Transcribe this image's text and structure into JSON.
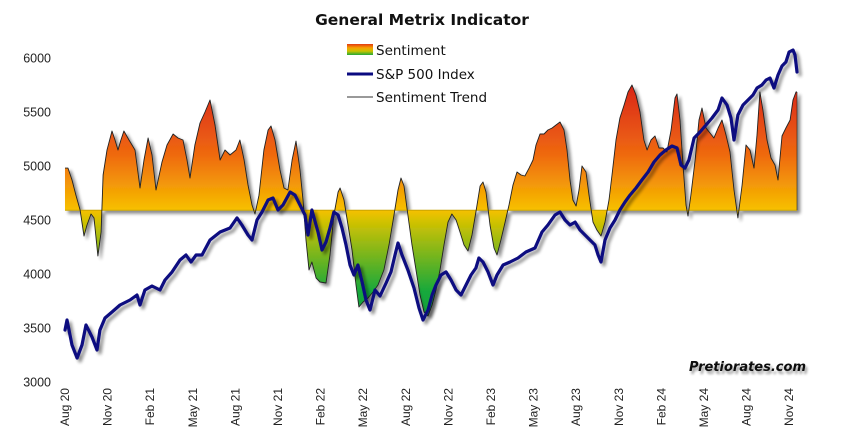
{
  "chart_data": {
    "type": "area",
    "title": "General Metrix Indicator",
    "xlabel": "",
    "ylabel": "",
    "ylim": [
      3000,
      6000
    ],
    "yticks": [
      "6000",
      "5500",
      "5000",
      "4500",
      "4000",
      "3500",
      "3000"
    ],
    "ytick_values": [
      6000,
      5500,
      5000,
      4500,
      4000,
      3500,
      3000
    ],
    "x_unit": "months since Aug 2020",
    "xlim": [
      0,
      52
    ],
    "xticks": [
      "Aug 20",
      "Nov 20",
      "Feb 21",
      "May 21",
      "Aug 21",
      "Nov 21",
      "Feb 22",
      "May 22",
      "Aug 22",
      "Nov 22",
      "Feb 23",
      "May 23",
      "Aug 23",
      "Nov 23",
      "Feb 24",
      "May 24",
      "Aug 24",
      "Nov 24"
    ],
    "xtick_values": [
      0,
      3,
      6,
      9,
      12,
      15,
      18,
      21,
      24,
      27,
      30,
      33,
      36,
      39,
      42,
      45,
      48,
      51
    ],
    "grid": false,
    "legend_position": "top-center",
    "watermark": "Pretiorates.com",
    "sentiment_baseline": 4590,
    "colors": {
      "sp500": "#0a0a80",
      "sentiment_high": "#d8201a",
      "sentiment_mid": "#ff9a00",
      "sentiment_base": "#f7c000",
      "sentiment_low": "#14a83c",
      "trend": "#222222"
    },
    "series": [
      {
        "name": "Sentiment",
        "kind": "area",
        "x": [
          0.21,
          0.49,
          0.77,
          1.06,
          1.34,
          1.55,
          1.83,
          2.04,
          2.32,
          2.54,
          2.68,
          2.96,
          3.31,
          3.52,
          3.73,
          3.94,
          4.15,
          4.51,
          4.93,
          5.28,
          5.56,
          5.85,
          6.13,
          6.41,
          6.83,
          7.18,
          7.61,
          7.96,
          8.31,
          8.59,
          8.8,
          9.15,
          9.51,
          9.86,
          10.21,
          10.56,
          10.92,
          11.27,
          11.62,
          12.04,
          12.32,
          12.61,
          12.89,
          13.17,
          13.38,
          13.66,
          14.01,
          14.3,
          14.51,
          14.79,
          15.14,
          15.42,
          15.7,
          15.99,
          16.27,
          16.55,
          16.76,
          16.97,
          17.18,
          17.39,
          17.68,
          17.96,
          18.38,
          18.66,
          18.94,
          19.23,
          19.37,
          19.65,
          19.93,
          20.21,
          20.49,
          20.7,
          20.99,
          21.34,
          21.69,
          22.04,
          22.46,
          22.82,
          23.17,
          23.45,
          23.66,
          23.87,
          24.15,
          24.44,
          24.72,
          25.0,
          25.28,
          25.56,
          25.85,
          26.13,
          26.41,
          26.69,
          26.97,
          27.25,
          27.54,
          27.82,
          28.1,
          28.38,
          28.66,
          28.94,
          29.23,
          29.44,
          29.65,
          29.93,
          30.21,
          30.42,
          30.7,
          30.99,
          31.27,
          31.55,
          31.83,
          32.11,
          32.39,
          32.68,
          32.96,
          33.17,
          33.45,
          33.73,
          34.01,
          34.3,
          34.58,
          34.86,
          35.14,
          35.35,
          35.56,
          35.77,
          35.99,
          36.2,
          36.41,
          36.69,
          36.9,
          37.18,
          37.46,
          37.75,
          38.03,
          38.31,
          38.52,
          38.8,
          39.08,
          39.37,
          39.65,
          39.93,
          40.21,
          40.49,
          40.77,
          40.99,
          41.27,
          41.55,
          41.83,
          42.11,
          42.39,
          42.68,
          42.96,
          43.1,
          43.31,
          43.52,
          43.73,
          43.87,
          44.08,
          44.37,
          44.65,
          44.86,
          45.14,
          45.42,
          45.7,
          45.99,
          46.27,
          46.55,
          46.83,
          47.11,
          47.39,
          47.68,
          47.96,
          48.24,
          48.52,
          48.73,
          48.94,
          49.15,
          49.44,
          49.72,
          50.0,
          50.21,
          50.49,
          50.77,
          51.06,
          51.27,
          51.48
        ],
        "values": [
          4981,
          4870,
          4731,
          4593,
          4352,
          4454,
          4556,
          4519,
          4167,
          4389,
          4917,
          5148,
          5324,
          5241,
          5148,
          5241,
          5324,
          5241,
          5148,
          4796,
          5056,
          5259,
          5102,
          4778,
          5037,
          5194,
          5296,
          5259,
          5241,
          5056,
          4889,
          5194,
          5398,
          5500,
          5611,
          5380,
          5056,
          5148,
          5102,
          5148,
          5241,
          5056,
          4824,
          4639,
          4556,
          4731,
          5148,
          5333,
          5370,
          5241,
          4963,
          4796,
          4778,
          5056,
          5231,
          4963,
          4685,
          4315,
          4037,
          4111,
          3963,
          3926,
          3917,
          4176,
          4546,
          4759,
          4796,
          4685,
          4454,
          4222,
          3898,
          3694,
          3741,
          3778,
          3833,
          3898,
          4037,
          4269,
          4546,
          4778,
          4889,
          4815,
          4546,
          4269,
          4037,
          3806,
          3648,
          3611,
          3713,
          3852,
          4037,
          4269,
          4481,
          4556,
          4500,
          4389,
          4269,
          4213,
          4361,
          4574,
          4815,
          4852,
          4759,
          4454,
          4241,
          4176,
          4315,
          4481,
          4639,
          4824,
          4944,
          4917,
          4907,
          4981,
          5056,
          5194,
          5296,
          5296,
          5333,
          5352,
          5380,
          5407,
          5333,
          5148,
          4870,
          4685,
          4630,
          4778,
          5000,
          4944,
          4731,
          4481,
          4407,
          4352,
          4481,
          4685,
          4917,
          5241,
          5444,
          5565,
          5685,
          5750,
          5657,
          5500,
          5241,
          5148,
          5241,
          5278,
          5167,
          5167,
          5130,
          5333,
          5630,
          5667,
          5426,
          5009,
          4639,
          4537,
          4731,
          5056,
          5426,
          5537,
          5352,
          5306,
          5259,
          5352,
          5426,
          5287,
          5130,
          4778,
          4519,
          4824,
          5194,
          5148,
          4981,
          5287,
          5685,
          5519,
          5241,
          5074,
          5009,
          4870,
          5278,
          5352,
          5426,
          5611,
          5685
        ]
      },
      {
        "name": "S&P 500 Index",
        "kind": "line",
        "x": [
          0,
          0.14,
          0.49,
          0.85,
          1.2,
          1.48,
          1.9,
          2.25,
          2.46,
          2.82,
          3.31,
          3.87,
          4.58,
          5.07,
          5.28,
          5.63,
          6.13,
          6.69,
          7.04,
          7.54,
          8.1,
          8.52,
          8.87,
          9.23,
          9.65,
          10.21,
          10.92,
          11.62,
          12.11,
          12.46,
          12.89,
          13.17,
          13.52,
          13.87,
          14.3,
          14.65,
          15.0,
          15.35,
          15.85,
          16.2,
          16.55,
          16.9,
          17.11,
          17.39,
          17.82,
          18.1,
          18.38,
          18.66,
          18.94,
          19.23,
          19.51,
          19.79,
          20.07,
          20.35,
          20.63,
          20.92,
          21.2,
          21.48,
          21.83,
          22.18,
          22.61,
          22.96,
          23.24,
          23.45,
          23.73,
          24.15,
          24.58,
          24.93,
          25.21,
          25.56,
          25.85,
          26.13,
          26.48,
          26.83,
          27.18,
          27.54,
          27.89,
          28.24,
          28.59,
          28.94,
          29.15,
          29.44,
          29.79,
          30.14,
          30.42,
          30.85,
          31.34,
          31.9,
          32.46,
          33.1,
          33.59,
          34.01,
          34.51,
          34.86,
          35.21,
          35.56,
          35.92,
          36.27,
          36.62,
          36.97,
          37.32,
          37.54,
          37.75,
          38.03,
          38.38,
          38.73,
          39.08,
          39.44,
          39.79,
          40.21,
          40.63,
          41.06,
          41.48,
          41.9,
          42.32,
          42.75,
          43.1,
          43.38,
          43.66,
          43.94,
          44.3,
          44.72,
          45.14,
          45.56,
          45.99,
          46.27,
          46.62,
          46.9,
          47.11,
          47.39,
          47.75,
          48.1,
          48.45,
          48.73,
          49.08,
          49.37,
          49.65,
          49.93,
          50.21,
          50.49,
          50.77,
          50.99,
          51.27,
          51.41,
          51.55
        ],
        "values": [
          3481,
          3574,
          3343,
          3222,
          3343,
          3528,
          3417,
          3296,
          3481,
          3593,
          3648,
          3713,
          3759,
          3806,
          3713,
          3852,
          3889,
          3852,
          3944,
          4019,
          4130,
          4176,
          4111,
          4176,
          4176,
          4315,
          4389,
          4426,
          4519,
          4454,
          4361,
          4315,
          4500,
          4574,
          4685,
          4704,
          4593,
          4639,
          4759,
          4731,
          4639,
          4546,
          4361,
          4593,
          4389,
          4222,
          4296,
          4426,
          4574,
          4546,
          4426,
          4269,
          4083,
          3991,
          4083,
          3926,
          3759,
          3667,
          3852,
          3796,
          3917,
          4019,
          4176,
          4287,
          4176,
          4037,
          3870,
          3685,
          3574,
          3667,
          3806,
          3898,
          3991,
          4019,
          3944,
          3852,
          3806,
          3898,
          3991,
          4056,
          4148,
          4111,
          4019,
          3898,
          3991,
          4083,
          4111,
          4148,
          4204,
          4241,
          4389,
          4454,
          4546,
          4574,
          4500,
          4454,
          4481,
          4407,
          4361,
          4315,
          4269,
          4176,
          4111,
          4315,
          4426,
          4500,
          4593,
          4667,
          4731,
          4796,
          4870,
          4944,
          5037,
          5102,
          5148,
          5185,
          5167,
          5009,
          4981,
          5056,
          5259,
          5315,
          5380,
          5444,
          5519,
          5630,
          5565,
          5444,
          5241,
          5472,
          5565,
          5611,
          5657,
          5722,
          5750,
          5796,
          5815,
          5722,
          5843,
          5926,
          5963,
          6056,
          6074,
          6028,
          5870
        ]
      },
      {
        "name": "Sentiment Trend",
        "kind": "line",
        "note": "thin outline of the sentiment area"
      }
    ]
  },
  "legend": {
    "items": [
      {
        "label": "Sentiment",
        "swatch": "gradient-bar"
      },
      {
        "label": "S&P 500 Index",
        "swatch": "thick-line"
      },
      {
        "label": "Sentiment Trend",
        "swatch": "thin-line"
      }
    ]
  }
}
